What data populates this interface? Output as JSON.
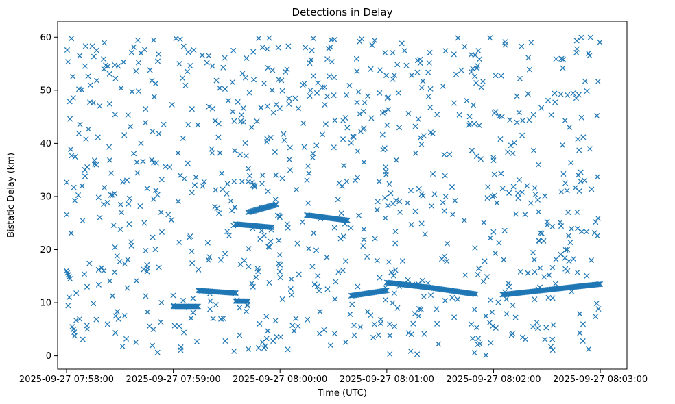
{
  "chart_data": {
    "type": "scatter",
    "title": "Detections in Delay",
    "xlabel": "Time (UTC)",
    "ylabel": "Bistatic Delay (km)",
    "marker": "x",
    "color": "#1f77b4",
    "xlim": [
      "2025-09-27 07:57:55",
      "2025-09-27 08:03:15"
    ],
    "ylim": [
      -2.5,
      63
    ],
    "x_ticks": [
      "2025-09-27 07:58:00",
      "2025-09-27 07:59:00",
      "2025-09-27 08:00:00",
      "2025-09-27 08:01:00",
      "2025-09-27 08:02:00",
      "2025-09-27 08:03:00"
    ],
    "y_ticks": [
      0,
      10,
      20,
      30,
      40,
      50,
      60
    ],
    "grid": false,
    "series": [
      {
        "points_note_free": true,
        "tracks": [
          {
            "x_start": "2025-09-27 07:58:00",
            "x_end": "2025-09-27 07:58:02",
            "y_start": 16.0,
            "y_end": 14.5
          },
          {
            "x_start": "2025-09-27 07:59:00",
            "x_end": "2025-09-27 07:59:14",
            "y_start": 9.3,
            "y_end": 9.3
          },
          {
            "x_start": "2025-09-27 07:59:14",
            "x_end": "2025-09-27 07:59:35",
            "y_start": 12.3,
            "y_end": 11.8
          },
          {
            "x_start": "2025-09-27 07:59:35",
            "x_end": "2025-09-27 07:59:42",
            "y_start": 10.3,
            "y_end": 10.3
          },
          {
            "x_start": "2025-09-27 07:59:35",
            "x_end": "2025-09-27 07:59:55",
            "y_start": 24.8,
            "y_end": 24.2
          },
          {
            "x_start": "2025-09-27 07:59:42",
            "x_end": "2025-09-27 07:59:58",
            "y_start": 27.0,
            "y_end": 28.5
          },
          {
            "x_start": "2025-09-27 08:00:15",
            "x_end": "2025-09-27 08:00:38",
            "y_start": 26.5,
            "y_end": 25.5
          },
          {
            "x_start": "2025-09-27 08:00:40",
            "x_end": "2025-09-27 08:01:00",
            "y_start": 11.3,
            "y_end": 12.3
          },
          {
            "x_start": "2025-09-27 08:01:00",
            "x_end": "2025-09-27 08:01:25",
            "y_start": 13.8,
            "y_end": 12.8
          },
          {
            "x_start": "2025-09-27 08:01:25",
            "x_end": "2025-09-27 08:01:50",
            "y_start": 12.8,
            "y_end": 11.6
          },
          {
            "x_start": "2025-09-27 08:02:05",
            "x_end": "2025-09-27 08:03:00",
            "y_start": 11.5,
            "y_end": 13.5
          }
        ]
      }
    ]
  }
}
